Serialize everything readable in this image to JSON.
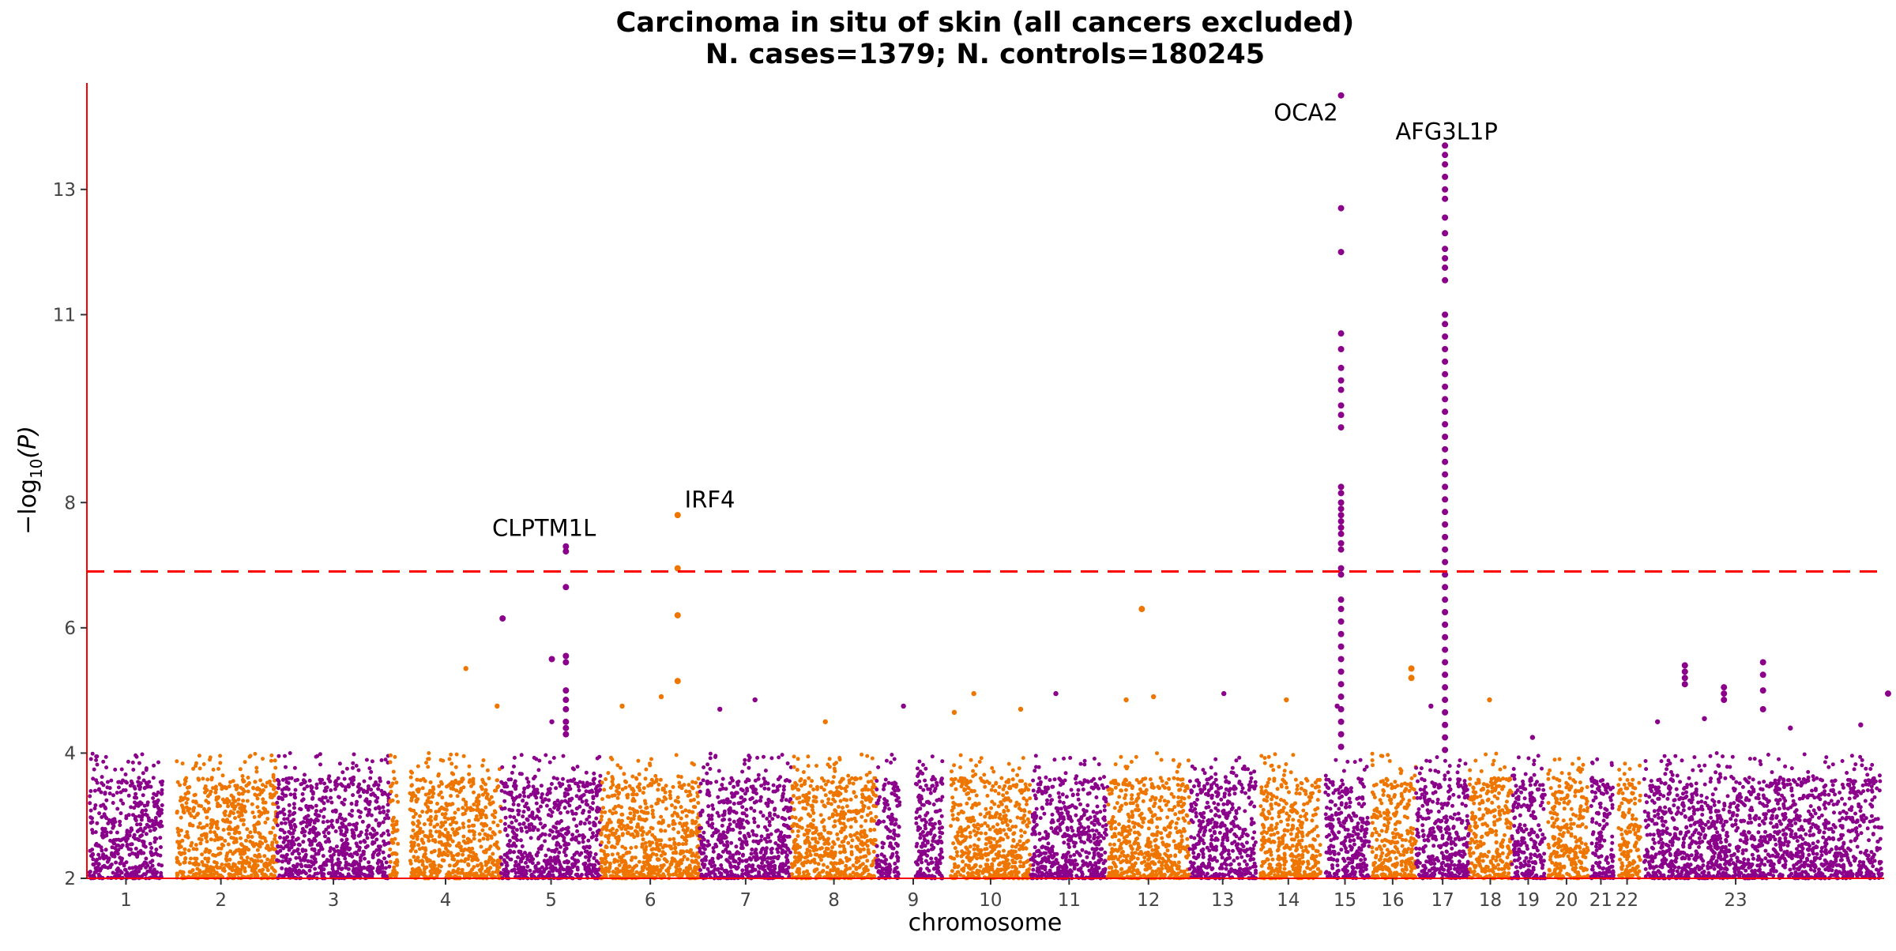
{
  "chart_data": {
    "type": "scatter",
    "title": "Carcinoma in situ of skin (all cancers excluded)",
    "subtitle": "N. cases=1379; N. controls=180245",
    "xlabel": "chromosome",
    "ylabel_main": "−log",
    "ylabel_sub": "10",
    "ylabel_arg": "(P)",
    "xlim": [
      0,
      23
    ],
    "ylim": [
      2,
      14.7
    ],
    "y_ticks": [
      2,
      4,
      6,
      8,
      11,
      13
    ],
    "grid": false,
    "significance_threshold": 6.9,
    "colors": {
      "odd": "#8B008B",
      "even": "#EE7600",
      "axis": "#ff0000",
      "threshold": "#ff0000"
    },
    "chromosomes": [
      {
        "label": "1",
        "start": 0.0,
        "end": 1.0
      },
      {
        "label": "2",
        "start": 1.0,
        "end": 2.43
      },
      {
        "label": "3",
        "start": 2.43,
        "end": 3.88
      },
      {
        "label": "4",
        "start": 3.88,
        "end": 5.3
      },
      {
        "label": "5",
        "start": 5.3,
        "end": 6.58
      },
      {
        "label": "6",
        "start": 6.58,
        "end": 7.84
      },
      {
        "label": "7",
        "start": 7.84,
        "end": 9.02
      },
      {
        "label": "8",
        "start": 9.02,
        "end": 10.1
      },
      {
        "label": "9",
        "start": 10.1,
        "end": 11.05
      },
      {
        "label": "10",
        "start": 11.05,
        "end": 12.08
      },
      {
        "label": "11",
        "start": 12.08,
        "end": 13.06
      },
      {
        "label": "12",
        "start": 13.06,
        "end": 14.11
      },
      {
        "label": "13",
        "start": 14.11,
        "end": 14.96
      },
      {
        "label": "14",
        "start": 14.96,
        "end": 15.79
      },
      {
        "label": "15",
        "start": 15.79,
        "end": 16.41
      },
      {
        "label": "16",
        "start": 16.41,
        "end": 17.01
      },
      {
        "label": "17",
        "start": 17.01,
        "end": 17.69
      },
      {
        "label": "18",
        "start": 17.69,
        "end": 18.23
      },
      {
        "label": "19",
        "start": 18.23,
        "end": 18.66
      },
      {
        "label": "20",
        "start": 18.66,
        "end": 19.21
      },
      {
        "label": "21",
        "start": 19.21,
        "end": 19.54
      },
      {
        "label": "22",
        "start": 19.54,
        "end": 19.88
      },
      {
        "label": "23",
        "start": 19.88,
        "end": 23.0
      }
    ],
    "gap_bands": [
      [
        0.0,
        0.03
      ],
      [
        0.97,
        1.15
      ],
      [
        3.98,
        4.13
      ],
      [
        10.4,
        10.6
      ],
      [
        10.95,
        11.05
      ],
      [
        14.96,
        15.02
      ],
      [
        15.79,
        15.85
      ],
      [
        16.41,
        16.44
      ],
      [
        18.66,
        18.7
      ],
      [
        19.21,
        19.25
      ],
      [
        19.54,
        19.6
      ],
      [
        19.88,
        19.93
      ],
      [
        22.97,
        23.0
      ]
    ],
    "noise_band_max": 3.6,
    "top_hits": [
      {
        "x": 4.85,
        "y": 5.35
      },
      {
        "x": 5.25,
        "y": 4.75
      },
      {
        "x": 5.95,
        "y": 4.5
      },
      {
        "x": 6.85,
        "y": 4.75
      },
      {
        "x": 7.35,
        "y": 4.9
      },
      {
        "x": 8.1,
        "y": 4.7
      },
      {
        "x": 8.55,
        "y": 4.85
      },
      {
        "x": 9.45,
        "y": 4.5
      },
      {
        "x": 10.45,
        "y": 4.75
      },
      {
        "x": 11.1,
        "y": 4.65
      },
      {
        "x": 11.35,
        "y": 4.95
      },
      {
        "x": 11.95,
        "y": 4.7
      },
      {
        "x": 12.4,
        "y": 4.95
      },
      {
        "x": 13.3,
        "y": 4.85
      },
      {
        "x": 13.65,
        "y": 4.9
      },
      {
        "x": 14.55,
        "y": 4.95
      },
      {
        "x": 15.35,
        "y": 4.85
      },
      {
        "x": 16.0,
        "y": 4.75
      },
      {
        "x": 17.2,
        "y": 4.75
      },
      {
        "x": 17.95,
        "y": 4.85
      },
      {
        "x": 18.5,
        "y": 4.25
      },
      {
        "x": 20.1,
        "y": 4.5
      },
      {
        "x": 20.7,
        "y": 4.55
      },
      {
        "x": 21.8,
        "y": 4.4
      },
      {
        "x": 22.7,
        "y": 4.45
      }
    ],
    "peaks": [
      {
        "x": 6.13,
        "ys": [
          7.3,
          7.22,
          6.65,
          5.55,
          5.45,
          5.0,
          4.85,
          4.7,
          4.5,
          4.4,
          4.3
        ]
      },
      {
        "x": 7.56,
        "ys": [
          7.8,
          6.95,
          6.2,
          5.15
        ]
      },
      {
        "x": 5.32,
        "ys": [
          6.15
        ]
      },
      {
        "x": 13.5,
        "ys": [
          6.3
        ]
      },
      {
        "x": 5.95,
        "ys": [
          5.5
        ]
      },
      {
        "x": 16.05,
        "ys": [
          14.5,
          12.7,
          12.0,
          10.7,
          10.45,
          10.15,
          9.95,
          9.8,
          9.55,
          9.4,
          9.2,
          8.25,
          8.15,
          8.0,
          7.9,
          7.8,
          7.7,
          7.6,
          7.5,
          7.35,
          7.25,
          6.95,
          6.85,
          6.45,
          6.3,
          6.1,
          5.9,
          5.7,
          5.5,
          5.3,
          5.1,
          4.9,
          4.7,
          4.5,
          4.3,
          4.1
        ]
      },
      {
        "x": 17.38,
        "ys": [
          13.7,
          13.55,
          13.4,
          13.2,
          13.0,
          12.85,
          12.55,
          12.3,
          12.05,
          11.9,
          11.75,
          11.55,
          11.0,
          10.85,
          10.65,
          10.45,
          10.25,
          10.05,
          9.85,
          9.65,
          9.45,
          9.25,
          9.05,
          8.85,
          8.65,
          8.45,
          8.25,
          8.05,
          7.85,
          7.65,
          7.45,
          7.25,
          7.05,
          6.85,
          6.65,
          6.45,
          6.25,
          6.05,
          5.85,
          5.65,
          5.45,
          5.25,
          5.05,
          4.85,
          4.65,
          4.45,
          4.25,
          4.05
        ]
      },
      {
        "x": 16.95,
        "ys": [
          5.35,
          5.2
        ]
      },
      {
        "x": 20.45,
        "ys": [
          5.4,
          5.3,
          5.2,
          5.1
        ]
      },
      {
        "x": 20.95,
        "ys": [
          5.05,
          4.95,
          4.85
        ]
      },
      {
        "x": 21.45,
        "ys": [
          5.45,
          5.25,
          5.0,
          4.7
        ]
      },
      {
        "x": 23.05,
        "ys": [
          4.95
        ]
      }
    ],
    "gene_labels": [
      {
        "text": "CLPTM1L",
        "x": 5.85,
        "y": 7.47,
        "anchor": "middle"
      },
      {
        "text": "IRF4",
        "x": 7.65,
        "y": 7.92,
        "anchor": "start"
      },
      {
        "text": "OCA2",
        "x": 15.6,
        "y": 14.1,
        "anchor": "middle"
      },
      {
        "text": "AFG3L1P",
        "x": 17.4,
        "y": 13.8,
        "anchor": "middle"
      }
    ]
  }
}
